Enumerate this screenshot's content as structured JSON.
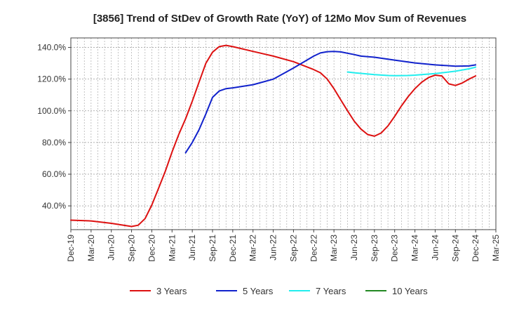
{
  "chart_data": {
    "type": "line",
    "title": "[3856]  Trend of StDev of Growth Rate (YoY) of 12Mo Mov Sum of Revenues",
    "xlabel": "",
    "ylabel": "",
    "x_ticks": [
      "Dec-19",
      "Mar-20",
      "Jun-20",
      "Sep-20",
      "Dec-20",
      "Mar-21",
      "Jun-21",
      "Sep-21",
      "Dec-21",
      "Mar-22",
      "Jun-22",
      "Sep-22",
      "Dec-22",
      "Mar-23",
      "Jun-23",
      "Sep-23",
      "Dec-23",
      "Mar-24",
      "Jun-24",
      "Sep-24",
      "Dec-24",
      "Mar-25"
    ],
    "y_ticks": [
      40,
      60,
      80,
      100,
      120,
      140
    ],
    "y_tick_labels": [
      "40.0%",
      "60.0%",
      "80.0%",
      "100.0%",
      "120.0%",
      "140.0%"
    ],
    "ylim": [
      25,
      146
    ],
    "series": [
      {
        "name": "3 Years",
        "color": "#dd1111",
        "values": [
          {
            "q": 0,
            "v": 31.0
          },
          {
            "q": 1,
            "v": 30.5
          },
          {
            "q": 2,
            "v": 29.0
          },
          {
            "q": 3,
            "v": 27.0
          },
          {
            "q": 3.33,
            "v": 27.8
          },
          {
            "q": 3.67,
            "v": 32.0
          },
          {
            "q": 4,
            "v": 40.5
          },
          {
            "q": 4.33,
            "v": 51.0
          },
          {
            "q": 4.67,
            "v": 62.0
          },
          {
            "q": 5,
            "v": 74.0
          },
          {
            "q": 5.33,
            "v": 85.0
          },
          {
            "q": 5.67,
            "v": 95.0
          },
          {
            "q": 6,
            "v": 106.0
          },
          {
            "q": 6.33,
            "v": 118.0
          },
          {
            "q": 6.67,
            "v": 130.0
          },
          {
            "q": 7,
            "v": 137.0
          },
          {
            "q": 7.33,
            "v": 140.5
          },
          {
            "q": 7.67,
            "v": 141.3
          },
          {
            "q": 8,
            "v": 140.5
          },
          {
            "q": 9,
            "v": 137.5
          },
          {
            "q": 10,
            "v": 134.5
          },
          {
            "q": 11,
            "v": 131.0
          },
          {
            "q": 12,
            "v": 126.0
          },
          {
            "q": 12.33,
            "v": 124.0
          },
          {
            "q": 12.67,
            "v": 120.0
          },
          {
            "q": 13,
            "v": 114.0
          },
          {
            "q": 13.33,
            "v": 107.0
          },
          {
            "q": 13.67,
            "v": 100.0
          },
          {
            "q": 14,
            "v": 93.5
          },
          {
            "q": 14.33,
            "v": 88.5
          },
          {
            "q": 14.67,
            "v": 85.0
          },
          {
            "q": 15,
            "v": 84.0
          },
          {
            "q": 15.33,
            "v": 86.0
          },
          {
            "q": 15.67,
            "v": 90.5
          },
          {
            "q": 16,
            "v": 96.5
          },
          {
            "q": 16.33,
            "v": 103.0
          },
          {
            "q": 16.67,
            "v": 109.0
          },
          {
            "q": 17,
            "v": 114.0
          },
          {
            "q": 17.33,
            "v": 118.0
          },
          {
            "q": 17.67,
            "v": 121.0
          },
          {
            "q": 18,
            "v": 122.5
          },
          {
            "q": 18.33,
            "v": 122.0
          },
          {
            "q": 18.67,
            "v": 117.0
          },
          {
            "q": 19,
            "v": 116.0
          },
          {
            "q": 19.33,
            "v": 117.5
          },
          {
            "q": 19.67,
            "v": 120.0
          },
          {
            "q": 20,
            "v": 122.0
          }
        ]
      },
      {
        "name": "5 Years",
        "color": "#1122cc",
        "values": [
          {
            "q": 5.67,
            "v": 73.5
          },
          {
            "q": 6,
            "v": 80.0
          },
          {
            "q": 6.33,
            "v": 88.0
          },
          {
            "q": 6.67,
            "v": 98.0
          },
          {
            "q": 7,
            "v": 108.5
          },
          {
            "q": 7.33,
            "v": 112.5
          },
          {
            "q": 7.67,
            "v": 114.0
          },
          {
            "q": 8,
            "v": 114.5
          },
          {
            "q": 9,
            "v": 116.5
          },
          {
            "q": 10,
            "v": 120.0
          },
          {
            "q": 11,
            "v": 127.0
          },
          {
            "q": 12,
            "v": 134.5
          },
          {
            "q": 12.33,
            "v": 136.5
          },
          {
            "q": 12.67,
            "v": 137.3
          },
          {
            "q": 13,
            "v": 137.5
          },
          {
            "q": 13.33,
            "v": 137.2
          },
          {
            "q": 14,
            "v": 135.5
          },
          {
            "q": 14.33,
            "v": 134.5
          },
          {
            "q": 15,
            "v": 133.8
          },
          {
            "q": 16,
            "v": 132.0
          },
          {
            "q": 17,
            "v": 130.2
          },
          {
            "q": 18,
            "v": 129.0
          },
          {
            "q": 19,
            "v": 128.2
          },
          {
            "q": 19.67,
            "v": 128.3
          },
          {
            "q": 20,
            "v": 129.0
          }
        ]
      },
      {
        "name": "7 Years",
        "color": "#22eeee",
        "values": [
          {
            "q": 13.67,
            "v": 124.5
          },
          {
            "q": 14,
            "v": 124.0
          },
          {
            "q": 15,
            "v": 122.8
          },
          {
            "q": 15.67,
            "v": 122.3
          },
          {
            "q": 16,
            "v": 122.2
          },
          {
            "q": 16.67,
            "v": 122.3
          },
          {
            "q": 17,
            "v": 122.5
          },
          {
            "q": 18,
            "v": 123.5
          },
          {
            "q": 19,
            "v": 125.0
          },
          {
            "q": 19.67,
            "v": 126.5
          },
          {
            "q": 20,
            "v": 127.5
          }
        ]
      },
      {
        "name": "10 Years",
        "color": "#228822",
        "values": []
      }
    ],
    "legend": [
      "3 Years",
      "5 Years",
      "7 Years",
      "10 Years"
    ],
    "legend_position": "bottom",
    "grid": true
  }
}
